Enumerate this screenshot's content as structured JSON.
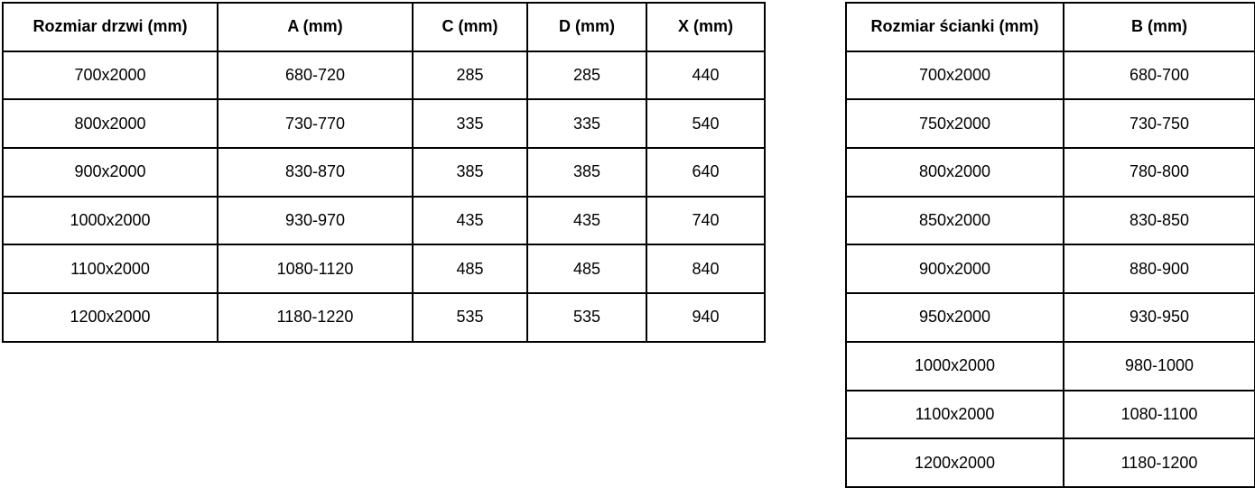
{
  "colors": {
    "border": "#000000",
    "text": "#000000",
    "background": "#ffffff"
  },
  "door_table": {
    "name": "door-size-table",
    "headers": [
      "Rozmiar drzwi (mm)",
      "A (mm)",
      "C (mm)",
      "D (mm)",
      "X (mm)"
    ],
    "rows": [
      [
        "700x2000",
        "680-720",
        "285",
        "285",
        "440"
      ],
      [
        "800x2000",
        "730-770",
        "335",
        "335",
        "540"
      ],
      [
        "900x2000",
        "830-870",
        "385",
        "385",
        "640"
      ],
      [
        "1000x2000",
        "930-970",
        "435",
        "435",
        "740"
      ],
      [
        "1100x2000",
        "1080-1120",
        "485",
        "485",
        "840"
      ],
      [
        "1200x2000",
        "1180-1220",
        "535",
        "535",
        "940"
      ]
    ]
  },
  "wall_table": {
    "name": "wall-panel-size-table",
    "headers": [
      "Rozmiar ścianki (mm)",
      "B (mm)"
    ],
    "rows": [
      [
        "700x2000",
        "680-700"
      ],
      [
        "750x2000",
        "730-750"
      ],
      [
        "800x2000",
        "780-800"
      ],
      [
        "850x2000",
        "830-850"
      ],
      [
        "900x2000",
        "880-900"
      ],
      [
        "950x2000",
        "930-950"
      ],
      [
        "1000x2000",
        "980-1000"
      ],
      [
        "1100x2000",
        "1080-1100"
      ],
      [
        "1200x2000",
        "1180-1200"
      ]
    ]
  }
}
